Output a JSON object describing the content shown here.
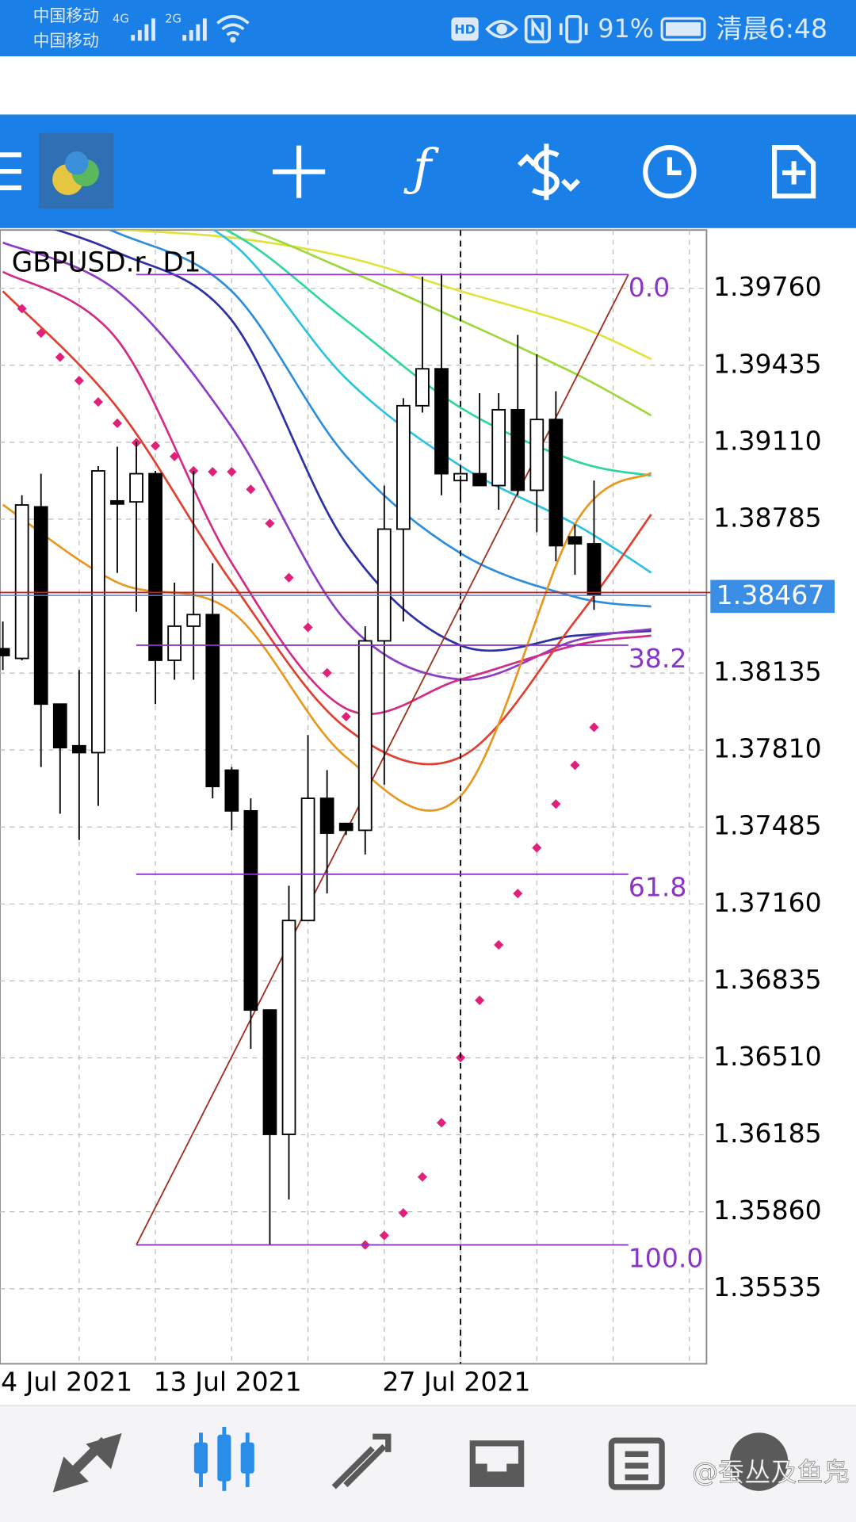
{
  "status_bar": {
    "carrier1": "中国移动",
    "carrier2": "中国移动",
    "net1": "4G",
    "net2": "2G",
    "hd": "HD",
    "battery": "91%",
    "time": "清晨6:48"
  },
  "chart_data": {
    "type": "candlestick",
    "title": "GBPUSD.r, D1",
    "open": [
      1.38238,
      1.38197,
      1.38837,
      1.38004,
      1.37828,
      1.37799,
      1.38862,
      1.38858,
      1.38977,
      1.38189,
      1.38333,
      1.38382,
      1.37725,
      1.37553,
      1.36712,
      1.36187,
      1.3709,
      1.37606,
      1.375,
      1.37471,
      1.38271,
      1.38743,
      1.39264,
      1.3942,
      1.38948,
      1.38977,
      1.38927,
      1.39247,
      1.38907,
      1.39206,
      1.3871,
      1.38681
    ],
    "high": [
      1.38353,
      1.38886,
      1.38977,
      1.38004,
      1.38148,
      1.39009,
      1.39091,
      1.39112,
      1.38989,
      1.38517,
      1.38989,
      1.38599,
      1.37738,
      1.37606,
      1.36712,
      1.37237,
      1.37873,
      1.37725,
      1.375,
      1.38333,
      1.38927,
      1.39296,
      1.39809,
      1.39822,
      1.39009,
      1.39317,
      1.39317,
      1.39563,
      1.39481,
      1.39325,
      1.38763,
      1.38948
    ],
    "low": [
      1.38148,
      1.38189,
      1.37738,
      1.37541,
      1.3743,
      1.37574,
      1.38558,
      1.38394,
      1.38004,
      1.38107,
      1.38107,
      1.37606,
      1.37471,
      1.36548,
      1.3572,
      1.35912,
      1.3709,
      1.37204,
      1.37451,
      1.37369,
      1.37664,
      1.38353,
      1.39235,
      1.38886,
      1.38866,
      1.38927,
      1.38825,
      1.38886,
      1.3873,
      1.38607,
      1.3855,
      1.38402
    ],
    "close": [
      1.38209,
      1.38845,
      1.38004,
      1.3782,
      1.37799,
      1.38989,
      1.38849,
      1.38977,
      1.38189,
      1.38333,
      1.38382,
      1.37656,
      1.37553,
      1.36712,
      1.36187,
      1.3709,
      1.37606,
      1.37459,
      1.37471,
      1.38271,
      1.38743,
      1.39264,
      1.3942,
      1.38977,
      1.38977,
      1.38927,
      1.39247,
      1.38907,
      1.39206,
      1.38673,
      1.38681,
      1.38467
    ],
    "series": [
      {
        "color": "#e2e23c",
        "x": [
          0,
          6,
          12,
          18,
          24,
          30,
          34
        ],
        "values": [
          1.40056,
          1.4001,
          1.39974,
          1.39892,
          1.39748,
          1.39605,
          1.39461
        ]
      },
      {
        "color": "#9ed83c",
        "x": [
          0,
          6,
          12,
          18,
          24,
          30,
          34
        ],
        "values": [
          1.40138,
          1.40084,
          1.40027,
          1.39838,
          1.39625,
          1.394,
          1.39223
        ]
      },
      {
        "color": "#2fd6a2",
        "x": [
          0,
          6,
          12,
          18,
          24,
          30,
          34
        ],
        "values": [
          1.40199,
          1.40138,
          1.39994,
          1.39625,
          1.39256,
          1.39031,
          1.38969
        ]
      },
      {
        "color": "#2ec2e2",
        "x": [
          0,
          6,
          12,
          18,
          24,
          30,
          34
        ],
        "values": [
          1.4024,
          1.40158,
          1.39953,
          1.39379,
          1.3901,
          1.38764,
          1.38559
        ]
      },
      {
        "color": "#2f8edc",
        "x": [
          0,
          6,
          12,
          18,
          24,
          30,
          34
        ],
        "values": [
          1.40158,
          1.39994,
          1.39748,
          1.39051,
          1.38641,
          1.38457,
          1.38416
        ]
      },
      {
        "color": "#2c32a6",
        "x": [
          0,
          6,
          12,
          18,
          24,
          30,
          34
        ],
        "values": [
          1.40076,
          1.39912,
          1.39625,
          1.38682,
          1.38252,
          1.38293,
          1.38313
        ]
      },
      {
        "color": "#8e3cc4",
        "x": [
          0,
          6,
          12,
          18,
          24,
          30,
          34
        ],
        "values": [
          1.39953,
          1.39748,
          1.39174,
          1.38354,
          1.38108,
          1.38272,
          1.38321
        ]
      },
      {
        "color": "#d22c86",
        "x": [
          0,
          6,
          12,
          18,
          24,
          30,
          34
        ],
        "values": [
          1.3983,
          1.39543,
          1.386,
          1.37985,
          1.38108,
          1.38252,
          1.38293
        ]
      },
      {
        "color": "#e04030",
        "x": [
          0,
          6,
          12,
          18,
          24,
          30,
          34
        ],
        "values": [
          1.39748,
          1.39256,
          1.38518,
          1.37903,
          1.3778,
          1.38354,
          1.38805
        ]
      },
      {
        "color": "#e8981e",
        "x": [
          0,
          6,
          12,
          18,
          24,
          30,
          34
        ],
        "values": [
          1.38846,
          1.38518,
          1.38395,
          1.3778,
          1.37616,
          1.38764,
          1.38981
        ]
      }
    ],
    "sar": {
      "color": "#e0207a",
      "values": [
        null,
        1.39674,
        1.39571,
        1.39469,
        1.3937,
        1.3928,
        1.3919,
        1.39108,
        1.39095,
        1.3905,
        1.38989,
        1.38985,
        1.38985,
        1.38911,
        1.38767,
        1.38538,
        1.38328,
        1.38136,
        1.37951,
        1.3572,
        1.3576,
        1.35855,
        1.36007,
        1.36236,
        1.36511,
        1.36753,
        1.36987,
        1.37204,
        1.37397,
        1.37582,
        1.37746,
        1.37906
      ]
    },
    "fib": {
      "high": 1.39818,
      "low": 1.3572,
      "x": [
        7,
        32.8
      ],
      "color": "#8a34c8",
      "trend_color": "#a0301e",
      "levels": [
        {
          "value": 0,
          "label": "0.0"
        },
        38.2,
        61.8,
        {
          "value": 100,
          "label": "100.0"
        }
      ]
    },
    "vline": 24,
    "last_price": 1.38467,
    "ylim": [
      1.35218,
      1.40006
    ],
    "yticks": [
      {
        "value": 1.3976,
        "label": "1.39760"
      },
      1.39435,
      {
        "value": 1.3911,
        "label": "1.39110"
      },
      1.38785,
      1.38135,
      {
        "value": 1.3781,
        "label": "1.37810"
      },
      1.37485,
      {
        "value": 1.3716,
        "label": "1.37160"
      },
      1.36835,
      {
        "value": 1.3651,
        "label": "1.36510"
      },
      1.36185,
      {
        "value": 1.3586,
        "label": "1.35860"
      },
      1.35535
    ],
    "xlim": [
      -0.15,
      36.9
    ],
    "xticks": [
      4,
      8,
      12,
      16,
      20,
      24,
      28,
      32,
      36
    ],
    "xlabels": [
      {
        "value": 0,
        "label": "4 Jul 2021"
      },
      {
        "value": 8,
        "label": "13 Jul 2021"
      },
      {
        "value": 20,
        "label": "27 Jul 2021"
      }
    ],
    "grid": true
  },
  "watermark": "@蚕丛及鱼凫"
}
